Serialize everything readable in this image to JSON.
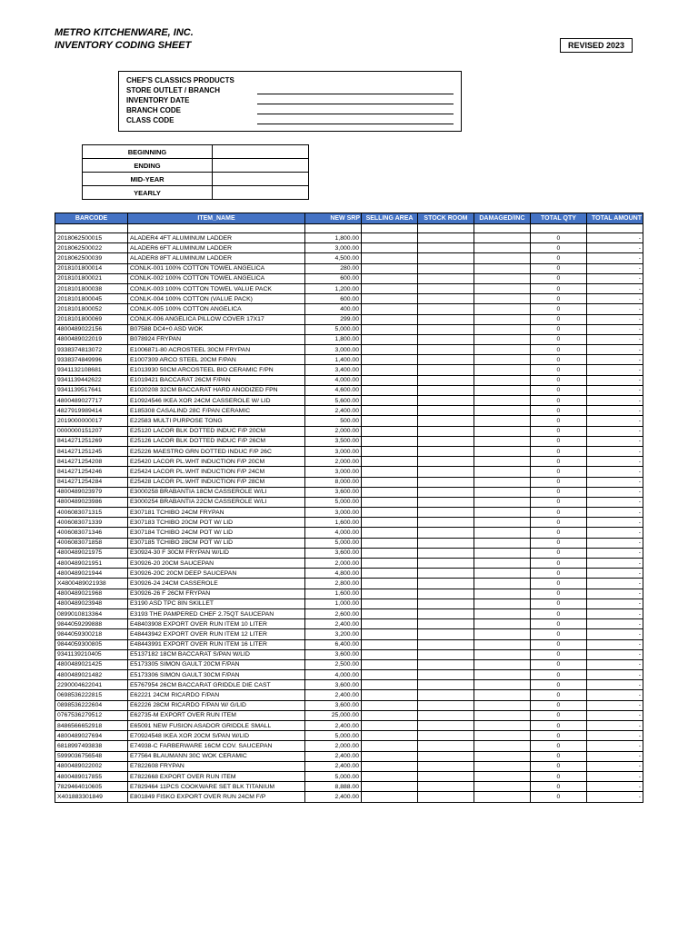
{
  "header": {
    "company": "METRO KITCHENWARE, INC.",
    "subtitle": "INVENTORY CODING SHEET",
    "revised": "REVISED 2023"
  },
  "info": {
    "title": "CHEF'S CLASSICS PRODUCTS",
    "rows": [
      "STORE OUTLET / BRANCH",
      "INVENTORY DATE",
      "BRANCH CODE",
      "CLASS CODE"
    ]
  },
  "periods": [
    "BEGINNING",
    "ENDING",
    "MID-YEAR",
    "YEARLY"
  ],
  "columns": [
    "BARCODE",
    "ITEM_NAME",
    "NEW SRP",
    "SELLING AREA",
    "STOCK ROOM",
    "DAMAGED/INC",
    "TOTAL QTY",
    "TOTAL AMOUNT"
  ],
  "col_widths": [
    "c-barcode",
    "c-name",
    "c-num",
    "c-sm",
    "c-sm",
    "c-sm",
    "c-sm",
    "c-num"
  ],
  "header_bg": "#4472c4",
  "rows": [
    {
      "b": "2018062500015",
      "n": "ALADER4 4FT ALUMINUM LADDER",
      "p": "1,800.00"
    },
    {
      "b": "2018062500022",
      "n": "ALADER6 6FT ALUMINUM LADDER",
      "p": "3,000.00"
    },
    {
      "b": "2018062500039",
      "n": "ALADER8 8FT ALUMINUM LADDER",
      "p": "4,500.00"
    },
    {
      "b": "2018101800014",
      "n": "CONLK-001 100% COTTON TOWEL ANGELICA",
      "p": "280.00"
    },
    {
      "b": "2018101800021",
      "n": "CONLK-002 100% COTTON TOWEL ANGELICA",
      "p": "600.00"
    },
    {
      "b": "2018101800038",
      "n": "CONLK-003 100% COTTON TOWEL VALUE PACK",
      "p": "1,200.00"
    },
    {
      "b": "2018101800045",
      "n": "CONLK-004 100% COTTON (VALUE PACK)",
      "p": "600.00"
    },
    {
      "b": "2018101800052",
      "n": "CONLK-005 100% COTTON ANGELICA",
      "p": "400.00"
    },
    {
      "b": "2018101800069",
      "n": "CONLK-006 ANGELICA PILLOW COVER 17X17",
      "p": "299.00"
    },
    {
      "b": "4800489022156",
      "n": "B07588 DC4+0 ASD WOK",
      "p": "5,000.00"
    },
    {
      "b": "4800489022019",
      "n": "B078924 FRYPAN",
      "p": "1,800.00"
    },
    {
      "b": "9338374813072",
      "n": "E1006871-80 ACROSTEEL 30CM FRYPAN",
      "p": "3,000.00"
    },
    {
      "b": "9338374849996",
      "n": "E1007309 ARCO STEEL 20CM F/PAN",
      "p": "1,400.00"
    },
    {
      "b": "9341132108681",
      "n": "E1013930 50CM ARCOSTEEL BIO CERAMIC F/PN",
      "p": "3,400.00"
    },
    {
      "b": "9341139442622",
      "n": "E1019421 BACCARAT 26CM F/PAN",
      "p": "4,000.00"
    },
    {
      "b": "9341139517641",
      "n": "E1020208 32CM BACCARAT HARD ANODIZED FPN",
      "p": "4,600.00"
    },
    {
      "b": "4800489027717",
      "n": "E10924546 IKEA XOR 24CM CASSEROLE W/ LID",
      "p": "5,600.00"
    },
    {
      "b": "4827919989414",
      "n": "E185308 CASALIND 28C F/PAN CERAMIC",
      "p": "2,400.00"
    },
    {
      "b": "2019000000017",
      "n": "E22583 MULTI PURPOSE TONG",
      "p": "500.00"
    },
    {
      "b": "0000000151207",
      "n": "E25120 LACOR BLK DOTTED INDUC F/P 20CM",
      "p": "2,000.00"
    },
    {
      "b": "8414271251269",
      "n": "E25126 LACOR BLK DOTTED INDUC F/P 26CM",
      "p": "3,500.00"
    },
    {
      "b": "8414271251245",
      "n": "E25226 MAESTRO GRN DOTTED INDUC F/P 26C",
      "p": "3,000.00"
    },
    {
      "b": "8414271254208",
      "n": "E25420 LACOR PL.WHT INDUCTION F/P 20CM",
      "p": "2,000.00"
    },
    {
      "b": "8414271254246",
      "n": "E25424 LACOR PL.WHT INDUCTION F/P 24CM",
      "p": "3,000.00"
    },
    {
      "b": "8414271254284",
      "n": "E25428 LACOR PL.WHT INDUCTION F/P 28CM",
      "p": "8,000.00"
    },
    {
      "b": "4800489023979",
      "n": "E3000258 BRABANTIA 18CM CASSEROLE W/LI",
      "p": "3,600.00"
    },
    {
      "b": "4800489023986",
      "n": "E3000254 BRABANTIA 22CM CASSEROLE W/LI",
      "p": "5,000.00"
    },
    {
      "b": "4006083071315",
      "n": "E307181 TCHIBO 24CM FRYPAN",
      "p": "3,000.00"
    },
    {
      "b": "4006083071339",
      "n": "E307183 TCHIBO 20CM POT W/ LID",
      "p": "1,600.00"
    },
    {
      "b": "4006083071346",
      "n": "E307184 TCHIBO 24CM POT W/ LID",
      "p": "4,000.00"
    },
    {
      "b": "4006083071858",
      "n": "E307185 TCHIBO 28CM POT W/ LID",
      "p": "5,000.00"
    },
    {
      "b": "4800489021975",
      "n": "E30924-30 F 30CM FRYPAN W/LID",
      "p": "3,600.00"
    },
    {
      "b": "4800489021951",
      "n": "E30926-20 20CM SAUCEPAN",
      "p": "2,000.00"
    },
    {
      "b": "4800489021944",
      "n": "E30926-20C 20CM DEEP SAUCEPAN",
      "p": "4,800.00"
    },
    {
      "b": "X4800489021938",
      "n": "E30926-24 24CM CASSEROLE",
      "p": "2,800.00"
    },
    {
      "b": "4800489021968",
      "n": "E30926-26 F 26CM FRYPAN",
      "p": "1,600.00"
    },
    {
      "b": "4800489023948",
      "n": "E3190 ASD TPC 8IN SKILLET",
      "p": "1,000.00"
    },
    {
      "b": "0899010813364",
      "n": "E3193 THE PAMPERED CHEF 2.75QT SAUCEPAN",
      "p": "2,600.00"
    },
    {
      "b": "9844059299888",
      "n": "E48403908 EXPORT OVER RUN ITEM 10 LITER",
      "p": "2,400.00"
    },
    {
      "b": "9844059300218",
      "n": "E48443942 EXPORT OVER RUN ITEM 12 LITER",
      "p": "3,200.00"
    },
    {
      "b": "9844059300805",
      "n": "E48443991 EXPORT OVER RUN ITEM 16 LITER",
      "p": "6,400.00"
    },
    {
      "b": "9341139210405",
      "n": "E5137182 18CM BACCARAT S/PAN W/LID",
      "p": "3,600.00"
    },
    {
      "b": "4800489021425",
      "n": "E5173305 SIMON GAULT 20CM F/PAN",
      "p": "2,500.00"
    },
    {
      "b": "4800489021482",
      "n": "E5173306 SIMON GAULT 30CM F/PAN",
      "p": "4,000.00"
    },
    {
      "b": "2290004622041",
      "n": "E5767954 26CM BACCARAT GRIDDLE DIE CAST",
      "p": "3,600.00"
    },
    {
      "b": "0698536222815",
      "n": "E62221 24CM RICARDO F/PAN",
      "p": "2,400.00"
    },
    {
      "b": "0898536222604",
      "n": "E62226 28CM RICARDO F/PAN W/ G/LID",
      "p": "3,600.00"
    },
    {
      "b": "0767536279512",
      "n": "E62735-M EXPORT OVER RUN ITEM",
      "p": "25,000.00"
    },
    {
      "b": "8486566652918",
      "n": "E65091 NEW FUSION ASADOR GRIDDLE SMALL",
      "p": "2,400.00"
    },
    {
      "b": "4800489027694",
      "n": "E70924548 IKEA XOR 20CM S/PAN W/LID",
      "p": "5,000.00"
    },
    {
      "b": "6818997493838",
      "n": "E74938-C FARBERWARE 16CM COV. SAUCEPAN",
      "p": "2,000.00"
    },
    {
      "b": "5999036756548",
      "n": "E77564 BLAUMANN 30C WOK CERAMIC",
      "p": "2,400.00"
    },
    {
      "b": "4800489022002",
      "n": "E7822608 FRYPAN",
      "p": "2,400.00"
    },
    {
      "b": "4800489017855",
      "n": "E7822668 EXPORT OVER RUN ITEM",
      "p": "5,000.00"
    },
    {
      "b": "7829464010605",
      "n": "E7829464 11PCS COOKWARE SET BLK TITANIUM",
      "p": "8,888.00"
    },
    {
      "b": "X401883301849",
      "n": "E801849 FISKO EXPORT OVER RUN 24CM F/P",
      "p": "2,400.00"
    }
  ],
  "qty_placeholder": "0",
  "amt_placeholder": "-"
}
